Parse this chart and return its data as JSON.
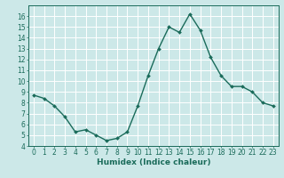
{
  "x": [
    0,
    1,
    2,
    3,
    4,
    5,
    6,
    7,
    8,
    9,
    10,
    11,
    12,
    13,
    14,
    15,
    16,
    17,
    18,
    19,
    20,
    21,
    22,
    23
  ],
  "y": [
    8.7,
    8.4,
    7.7,
    6.7,
    5.3,
    5.5,
    5.0,
    4.5,
    4.7,
    5.3,
    7.7,
    10.5,
    13.0,
    15.0,
    14.5,
    16.2,
    14.7,
    12.2,
    10.5,
    9.5,
    9.5,
    9.0,
    8.0,
    7.7
  ],
  "line_color": "#1a6b5a",
  "marker": "D",
  "marker_size": 2.0,
  "bg_color": "#cce8e8",
  "grid_color": "#ffffff",
  "xlabel": "Humidex (Indice chaleur)",
  "xlabel_fontsize": 6.5,
  "xlim": [
    -0.5,
    23.5
  ],
  "ylim": [
    4,
    17
  ],
  "yticks": [
    4,
    5,
    6,
    7,
    8,
    9,
    10,
    11,
    12,
    13,
    14,
    15,
    16
  ],
  "xtick_labels": [
    "0",
    "1",
    "2",
    "3",
    "4",
    "5",
    "6",
    "7",
    "8",
    "9",
    "10",
    "11",
    "12",
    "13",
    "14",
    "15",
    "16",
    "17",
    "18",
    "19",
    "20",
    "21",
    "22",
    "23"
  ],
  "tick_fontsize": 5.5,
  "line_width": 1.0
}
